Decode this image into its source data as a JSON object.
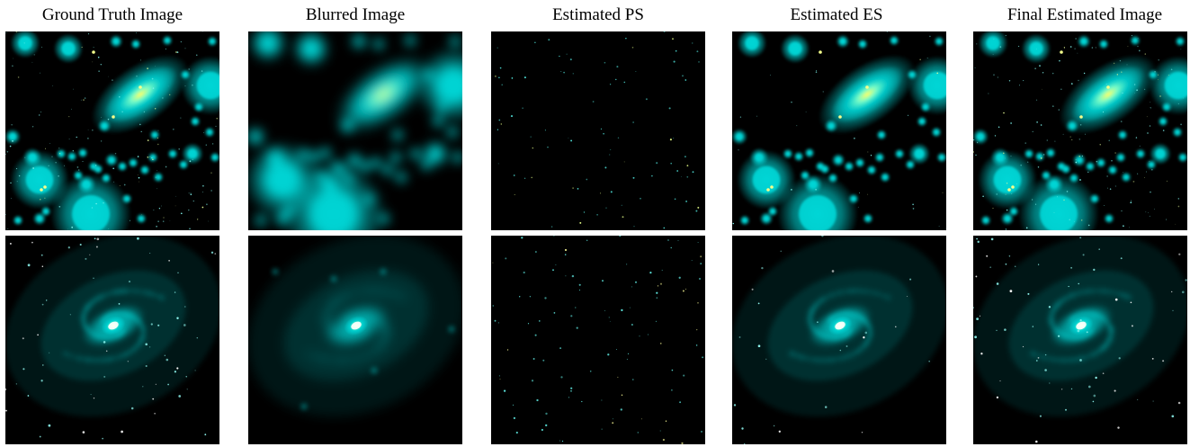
{
  "figure": {
    "columns": [
      {
        "title": "Ground Truth Image"
      },
      {
        "title": "Blurred Image"
      },
      {
        "title": "Estimated PS"
      },
      {
        "title": "Estimated ES"
      },
      {
        "title": "Final Estimated Image"
      }
    ],
    "rows": [
      "galaxy-field",
      "spiral-galaxy"
    ],
    "colors": {
      "background": "#000000",
      "glow": "#00d7d7",
      "core": "#ffff66"
    }
  }
}
